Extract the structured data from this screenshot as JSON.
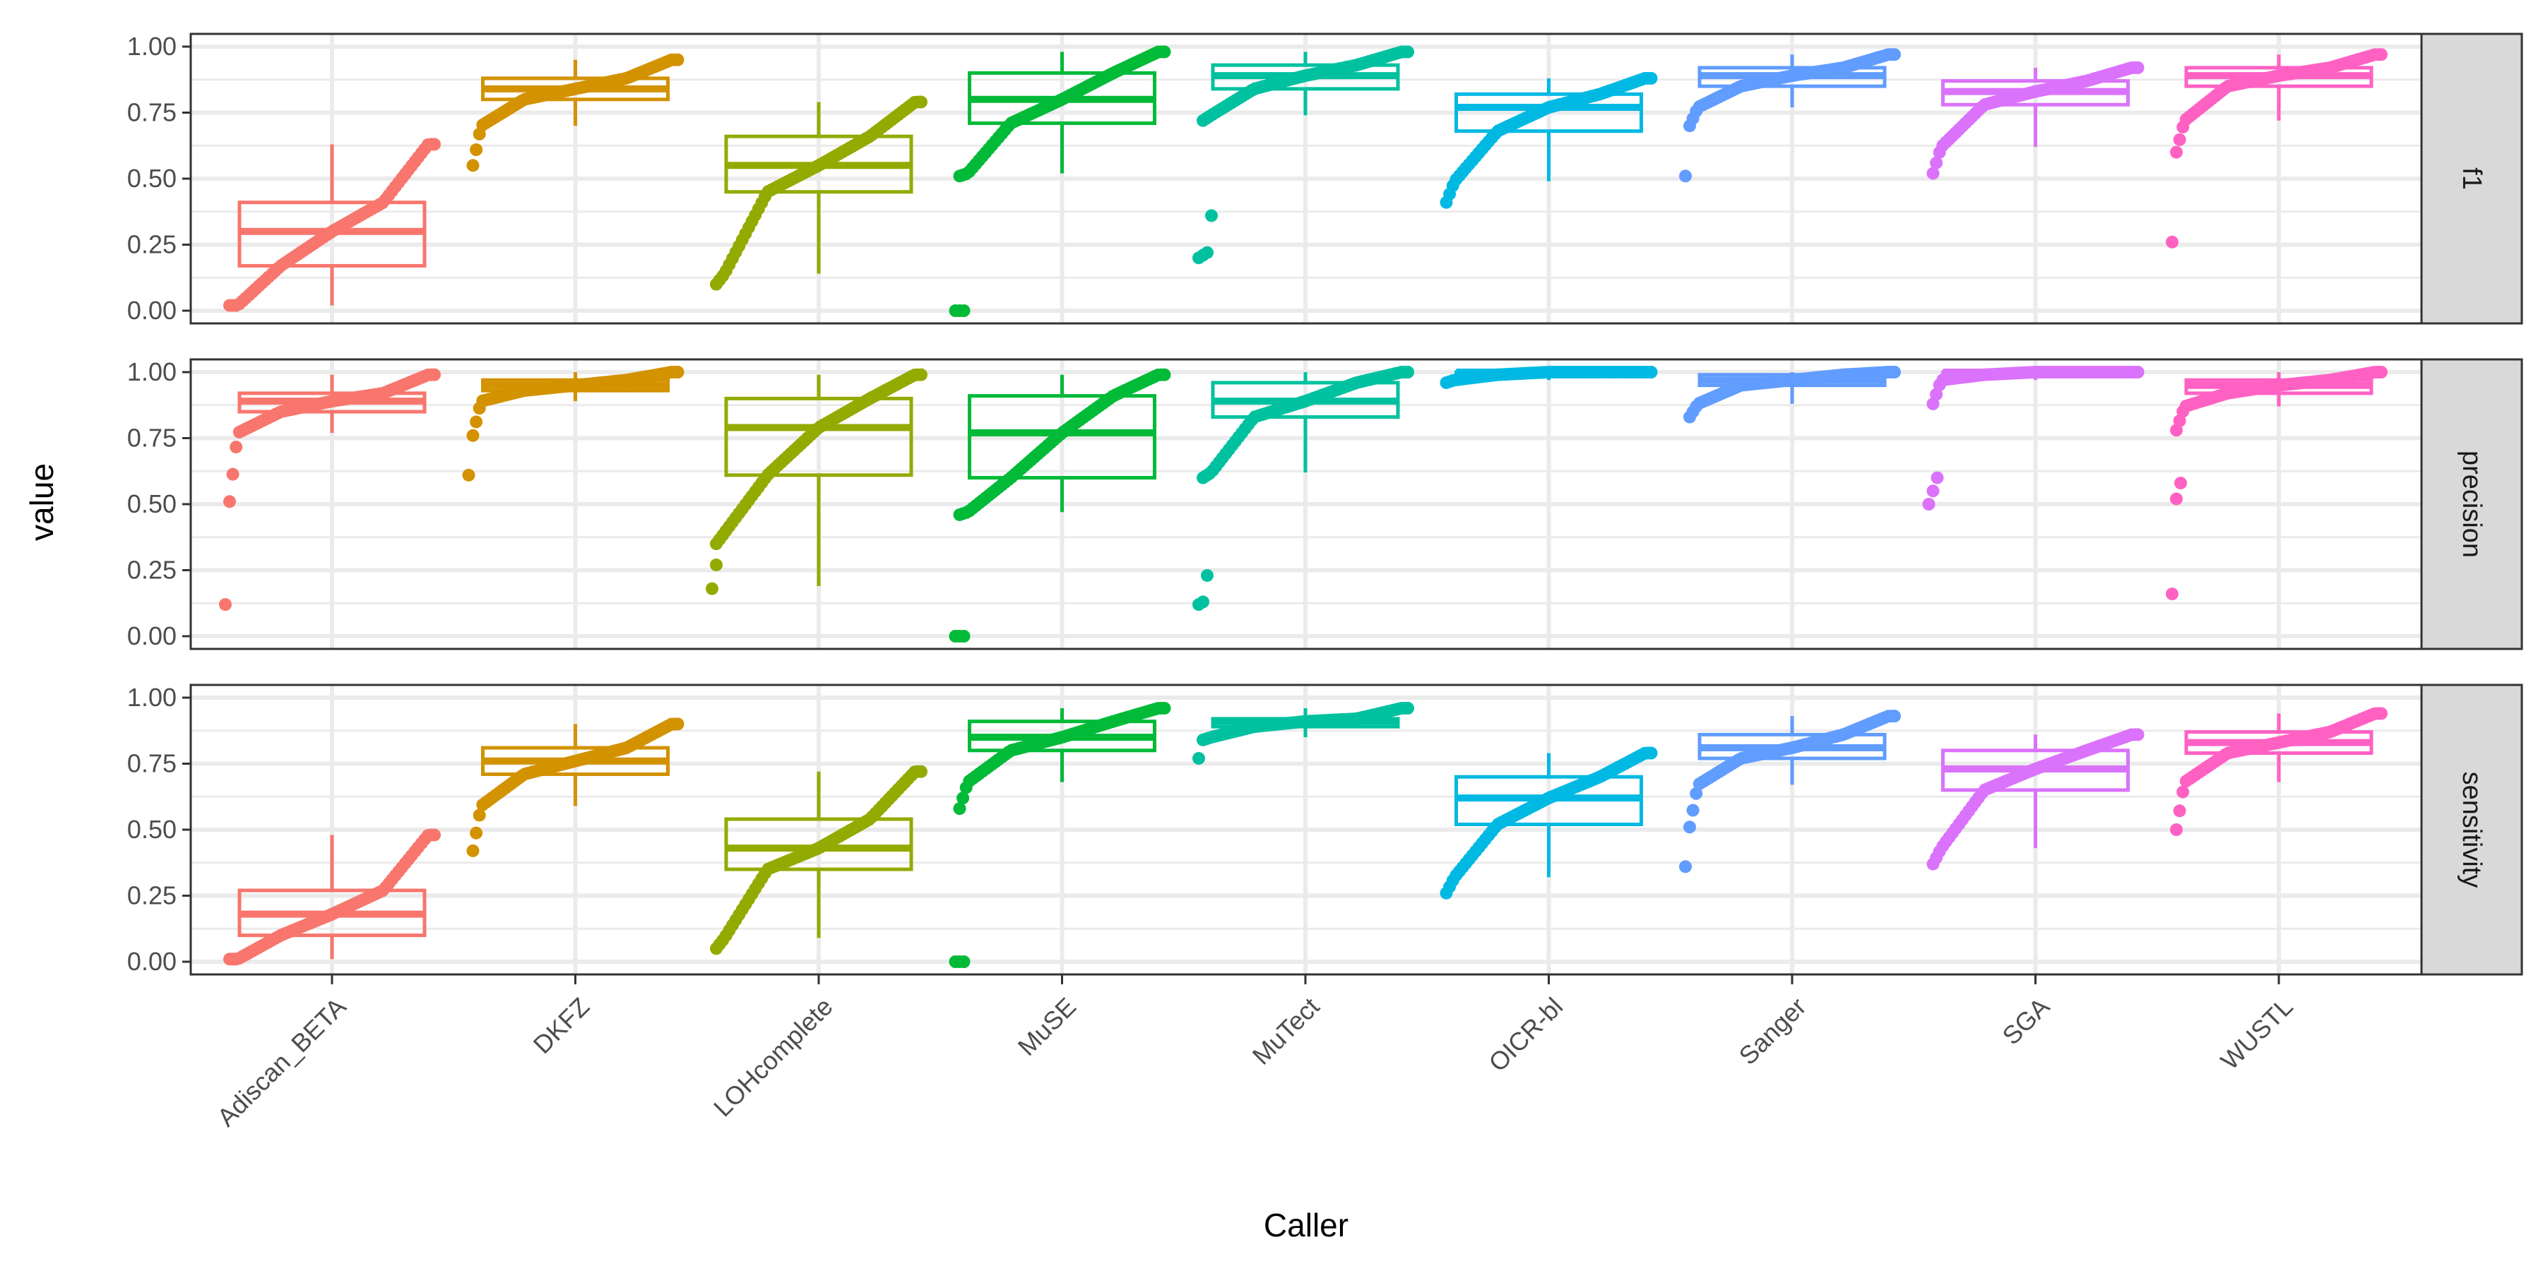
{
  "chart_data": {
    "type": "boxplot",
    "xlabel": "Caller",
    "ylabel": "value",
    "ylim": [
      0,
      1
    ],
    "yticks": [
      "0.00",
      "0.25",
      "0.50",
      "0.75",
      "1.00"
    ],
    "grid": true,
    "legend": "none",
    "categories": [
      "Adiscan_BETA",
      "DKFZ",
      "LOHcomplete",
      "MuSE",
      "MuTect",
      "OICR-bl",
      "Sanger",
      "SGA",
      "WUSTL"
    ],
    "colors": [
      "#F8766D",
      "#D39200",
      "#93AA00",
      "#00BA38",
      "#00C19F",
      "#00B9E3",
      "#619CFF",
      "#DB72FB",
      "#FF61C3"
    ],
    "panels": [
      {
        "facet": "f1",
        "boxes": [
          {
            "caller": "Adiscan_BETA",
            "min": 0.02,
            "q1": 0.17,
            "median": 0.3,
            "q3": 0.41,
            "max": 0.63,
            "point_min": 0.02,
            "point_max": 0.63
          },
          {
            "caller": "DKFZ",
            "min": 0.7,
            "q1": 0.8,
            "median": 0.84,
            "q3": 0.88,
            "max": 0.95,
            "point_min": 0.55,
            "point_max": 0.95
          },
          {
            "caller": "LOHcomplete",
            "min": 0.14,
            "q1": 0.45,
            "median": 0.55,
            "q3": 0.66,
            "max": 0.79,
            "point_min": 0.1,
            "point_max": 0.79
          },
          {
            "caller": "MuSE",
            "min": 0.52,
            "q1": 0.71,
            "median": 0.8,
            "q3": 0.9,
            "max": 0.98,
            "point_min": 0.51,
            "point_max": 0.98
          },
          {
            "caller": "MuTect",
            "min": 0.74,
            "q1": 0.84,
            "median": 0.89,
            "q3": 0.93,
            "max": 0.98,
            "point_min": 0.72,
            "point_max": 0.98
          },
          {
            "caller": "OICR-bl",
            "min": 0.49,
            "q1": 0.68,
            "median": 0.77,
            "q3": 0.82,
            "max": 0.88,
            "point_min": 0.41,
            "point_max": 0.88
          },
          {
            "caller": "Sanger",
            "min": 0.77,
            "q1": 0.85,
            "median": 0.89,
            "q3": 0.92,
            "max": 0.97,
            "point_min": 0.7,
            "point_max": 0.97
          },
          {
            "caller": "SGA",
            "min": 0.62,
            "q1": 0.78,
            "median": 0.83,
            "q3": 0.87,
            "max": 0.92,
            "point_min": 0.52,
            "point_max": 0.92
          },
          {
            "caller": "WUSTL",
            "min": 0.72,
            "q1": 0.85,
            "median": 0.89,
            "q3": 0.92,
            "max": 0.97,
            "point_min": 0.6,
            "point_max": 0.97
          }
        ],
        "outliers": [
          {
            "caller": "MuSE",
            "values": [
              0.0,
              0.0,
              0.0
            ]
          },
          {
            "caller": "MuTect",
            "values": [
              0.2,
              0.21,
              0.22,
              0.36
            ]
          },
          {
            "caller": "Sanger",
            "values": [
              0.51
            ]
          },
          {
            "caller": "WUSTL",
            "values": [
              0.26
            ]
          }
        ]
      },
      {
        "facet": "precision",
        "boxes": [
          {
            "caller": "Adiscan_BETA",
            "min": 0.77,
            "q1": 0.85,
            "median": 0.89,
            "q3": 0.92,
            "max": 0.99,
            "point_min": 0.51,
            "point_max": 0.99
          },
          {
            "caller": "DKFZ",
            "min": 0.89,
            "q1": 0.93,
            "median": 0.95,
            "q3": 0.97,
            "max": 1.0,
            "point_min": 0.76,
            "point_max": 1.0
          },
          {
            "caller": "LOHcomplete",
            "min": 0.19,
            "q1": 0.61,
            "median": 0.79,
            "q3": 0.9,
            "max": 0.99,
            "point_min": 0.35,
            "point_max": 0.99
          },
          {
            "caller": "MuSE",
            "min": 0.47,
            "q1": 0.6,
            "median": 0.77,
            "q3": 0.91,
            "max": 0.99,
            "point_min": 0.46,
            "point_max": 0.99
          },
          {
            "caller": "MuTect",
            "min": 0.62,
            "q1": 0.83,
            "median": 0.89,
            "q3": 0.96,
            "max": 1.0,
            "point_min": 0.6,
            "point_max": 1.0
          },
          {
            "caller": "OICR-bl",
            "min": 0.97,
            "q1": 0.99,
            "median": 1.0,
            "q3": 1.0,
            "max": 1.0,
            "point_min": 0.96,
            "point_max": 1.0
          },
          {
            "caller": "Sanger",
            "min": 0.88,
            "q1": 0.95,
            "median": 0.97,
            "q3": 0.99,
            "max": 1.0,
            "point_min": 0.83,
            "point_max": 1.0
          },
          {
            "caller": "SGA",
            "min": 0.97,
            "q1": 0.99,
            "median": 1.0,
            "q3": 1.0,
            "max": 1.0,
            "point_min": 0.88,
            "point_max": 1.0
          },
          {
            "caller": "WUSTL",
            "min": 0.87,
            "q1": 0.92,
            "median": 0.95,
            "q3": 0.97,
            "max": 1.0,
            "point_min": 0.78,
            "point_max": 1.0
          }
        ],
        "outliers": [
          {
            "caller": "Adiscan_BETA",
            "values": [
              0.12
            ]
          },
          {
            "caller": "DKFZ",
            "values": [
              0.61
            ]
          },
          {
            "caller": "LOHcomplete",
            "values": [
              0.18,
              0.27
            ]
          },
          {
            "caller": "MuSE",
            "values": [
              0.0,
              0.0,
              0.0
            ]
          },
          {
            "caller": "MuTect",
            "values": [
              0.12,
              0.13,
              0.23
            ]
          },
          {
            "caller": "SGA",
            "values": [
              0.5,
              0.55,
              0.6
            ]
          },
          {
            "caller": "WUSTL",
            "values": [
              0.16,
              0.52,
              0.58
            ]
          }
        ]
      },
      {
        "facet": "sensitivity",
        "boxes": [
          {
            "caller": "Adiscan_BETA",
            "min": 0.01,
            "q1": 0.1,
            "median": 0.18,
            "q3": 0.27,
            "max": 0.48,
            "point_min": 0.01,
            "point_max": 0.48
          },
          {
            "caller": "DKFZ",
            "min": 0.59,
            "q1": 0.71,
            "median": 0.76,
            "q3": 0.81,
            "max": 0.9,
            "point_min": 0.42,
            "point_max": 0.9
          },
          {
            "caller": "LOHcomplete",
            "min": 0.09,
            "q1": 0.35,
            "median": 0.43,
            "q3": 0.54,
            "max": 0.72,
            "point_min": 0.05,
            "point_max": 0.72
          },
          {
            "caller": "MuSE",
            "min": 0.68,
            "q1": 0.8,
            "median": 0.85,
            "q3": 0.91,
            "max": 0.96,
            "point_min": 0.58,
            "point_max": 0.96
          },
          {
            "caller": "MuTect",
            "min": 0.85,
            "q1": 0.89,
            "median": 0.91,
            "q3": 0.92,
            "max": 0.96,
            "point_min": 0.84,
            "point_max": 0.96
          },
          {
            "caller": "OICR-bl",
            "min": 0.32,
            "q1": 0.52,
            "median": 0.62,
            "q3": 0.7,
            "max": 0.79,
            "point_min": 0.26,
            "point_max": 0.79
          },
          {
            "caller": "Sanger",
            "min": 0.67,
            "q1": 0.77,
            "median": 0.81,
            "q3": 0.86,
            "max": 0.93,
            "point_min": 0.51,
            "point_max": 0.93
          },
          {
            "caller": "SGA",
            "min": 0.43,
            "q1": 0.65,
            "median": 0.73,
            "q3": 0.8,
            "max": 0.86,
            "point_min": 0.37,
            "point_max": 0.86
          },
          {
            "caller": "WUSTL",
            "min": 0.68,
            "q1": 0.79,
            "median": 0.83,
            "q3": 0.87,
            "max": 0.94,
            "point_min": 0.5,
            "point_max": 0.94
          }
        ],
        "outliers": [
          {
            "caller": "MuSE",
            "values": [
              0.0,
              0.0,
              0.0
            ]
          },
          {
            "caller": "MuTect",
            "values": [
              0.77
            ]
          },
          {
            "caller": "Sanger",
            "values": [
              0.36
            ]
          }
        ]
      }
    ]
  }
}
